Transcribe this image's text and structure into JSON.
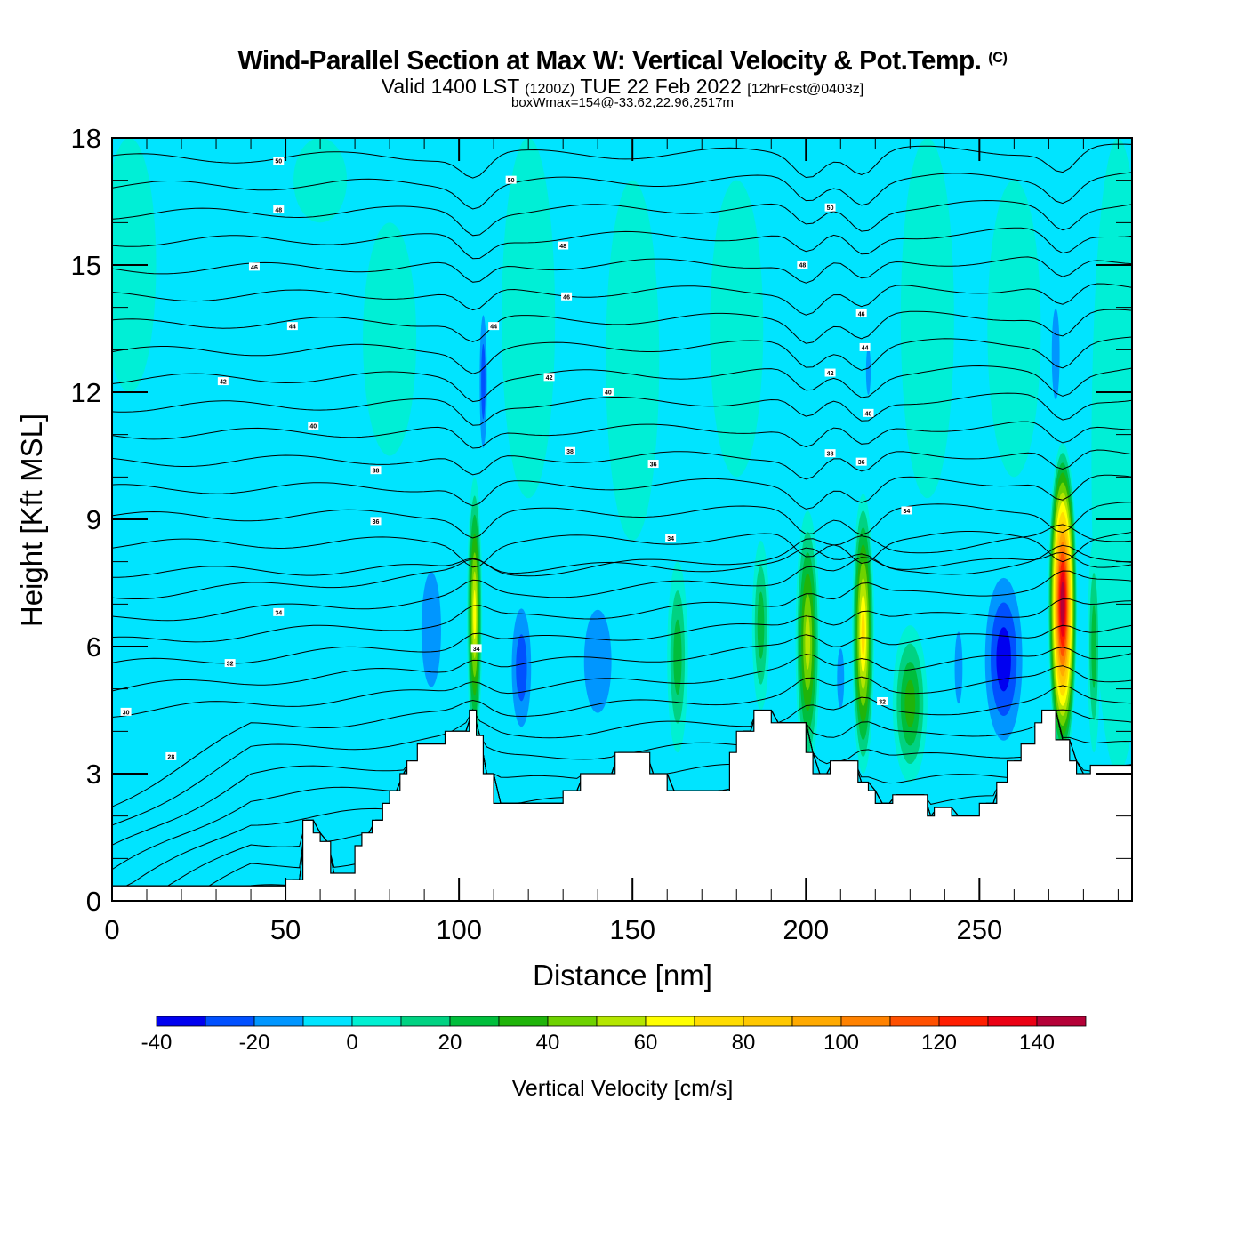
{
  "header": {
    "title": "Wind-Parallel Section at Max W: Vertical Velocity & Pot.Temp.",
    "copyright": "(C)",
    "valid_prefix": "Valid 1400 LST",
    "valid_utc": "(1200Z)",
    "valid_date": "TUE 22 Feb 2022",
    "forecast": "[12hrFcst@0403z]",
    "box_wmax": "boxWmax=154@-33.62,22.96,2517m"
  },
  "chart_data": {
    "type": "heatmap",
    "title": "Wind-Parallel Section at Max W: Vertical Velocity & Pot.Temp.",
    "xlabel": "Distance [nm]",
    "ylabel": "Height [Kft MSL]",
    "xlim": [
      0,
      294
    ],
    "ylim": [
      0,
      18
    ],
    "xticks": [
      0,
      50,
      100,
      150,
      200,
      250
    ],
    "yticks": [
      0,
      3,
      6,
      9,
      12,
      15,
      18
    ],
    "x_minor_step": 10,
    "y_minor_step": 1,
    "colorbar": {
      "title": "Vertical Velocity [cm/s]",
      "levels": [
        -40,
        -30,
        -20,
        -10,
        0,
        10,
        20,
        30,
        40,
        50,
        60,
        70,
        80,
        90,
        100,
        110,
        120,
        130,
        140,
        150
      ],
      "tick_labels": [
        -40,
        -20,
        0,
        20,
        40,
        60,
        80,
        100,
        120,
        140
      ],
      "colors": [
        "#0000f0",
        "#0050ff",
        "#0096ff",
        "#00e4ff",
        "#00f0d2",
        "#00d282",
        "#00be3c",
        "#20b40a",
        "#6ed200",
        "#b4e600",
        "#ffff00",
        "#ffdc00",
        "#ffc800",
        "#ffaa00",
        "#ff8200",
        "#ff5000",
        "#ff1e00",
        "#eb0014",
        "#b40037"
      ]
    },
    "background_value": 5,
    "updrafts": [
      {
        "x": 104.5,
        "zmin": 3.5,
        "zmax": 10.0,
        "peak": 65,
        "width": 2.2
      },
      {
        "x": 200.5,
        "zmin": 3.0,
        "zmax": 9.2,
        "peak": 55,
        "width": 3.5
      },
      {
        "x": 216.5,
        "zmin": 3.0,
        "zmax": 9.6,
        "peak": 75,
        "width": 3.2
      },
      {
        "x": 274,
        "zmin": 3.2,
        "zmax": 10.8,
        "peak": 154,
        "width": 4.2
      },
      {
        "x": 187,
        "zmin": 4.5,
        "zmax": 8.5,
        "peak": 25,
        "width": 2.5
      },
      {
        "x": 230,
        "zmin": 2.8,
        "zmax": 6.5,
        "peak": 30,
        "width": 5
      },
      {
        "x": 283,
        "zmin": 3.5,
        "zmax": 8.5,
        "peak": 22,
        "width": 1.8
      },
      {
        "x": 163,
        "zmin": 3.5,
        "zmax": 8.0,
        "peak": 20,
        "width": 3
      }
    ],
    "downdrafts": [
      {
        "x": 92,
        "zmin": 4.0,
        "zmax": 8.8,
        "peak": -20,
        "width": 5
      },
      {
        "x": 118,
        "zmin": 3.5,
        "zmax": 7.5,
        "peak": -30,
        "width": 4
      },
      {
        "x": 140,
        "zmin": 3.5,
        "zmax": 7.8,
        "peak": -20,
        "width": 7
      },
      {
        "x": 107,
        "zmin": 10.0,
        "zmax": 14.5,
        "peak": -30,
        "width": 1.5
      },
      {
        "x": 210,
        "zmin": 4.0,
        "zmax": 6.5,
        "peak": -20,
        "width": 1.8
      },
      {
        "x": 257,
        "zmin": 3.2,
        "zmax": 8.2,
        "peak": -40,
        "width": 7
      },
      {
        "x": 272,
        "zmin": 11.0,
        "zmax": 14.8,
        "peak": -25,
        "width": 2
      },
      {
        "x": 218,
        "zmin": 11.5,
        "zmax": 13.5,
        "peak": -25,
        "width": 1.2
      },
      {
        "x": 244,
        "zmin": 4.0,
        "zmax": 7.0,
        "peak": -20,
        "width": 2
      }
    ],
    "terrain_kft": {
      "x": [
        0,
        30,
        45,
        50,
        55,
        58,
        60,
        63,
        65,
        67,
        70,
        72,
        75,
        78,
        80,
        83,
        85,
        88,
        92,
        96,
        100,
        103,
        105,
        107,
        110,
        112,
        125,
        130,
        135,
        145,
        150,
        155,
        160,
        165,
        170,
        178,
        180,
        185,
        188,
        190,
        195,
        200,
        202,
        205,
        207,
        210,
        215,
        218,
        220,
        223,
        225,
        235,
        237,
        240,
        242,
        248,
        250,
        255,
        258,
        262,
        266,
        268,
        270,
        272,
        276,
        278,
        280,
        282,
        285,
        294
      ],
      "z": [
        0.35,
        0.35,
        0.35,
        0.5,
        1.9,
        1.6,
        1.4,
        0.65,
        0.65,
        0.65,
        1.3,
        1.6,
        1.9,
        2.3,
        2.6,
        3.0,
        3.3,
        3.7,
        3.7,
        4.0,
        4.0,
        4.5,
        3.9,
        3.0,
        2.3,
        2.3,
        2.3,
        2.6,
        3.0,
        3.5,
        3.5,
        3.0,
        2.6,
        2.6,
        2.6,
        3.5,
        4.0,
        4.5,
        4.5,
        4.2,
        4.2,
        3.5,
        3.0,
        3.0,
        3.3,
        3.3,
        2.8,
        2.6,
        2.3,
        2.3,
        2.5,
        2.0,
        2.2,
        2.2,
        2.0,
        2.0,
        2.3,
        2.8,
        3.3,
        3.7,
        4.2,
        4.5,
        4.5,
        3.8,
        3.3,
        3.0,
        3.0,
        3.2,
        3.2,
        3.2
      ]
    },
    "theta_contours": {
      "unit": "C",
      "levels": [
        20,
        21,
        22,
        23,
        24,
        25,
        26,
        27,
        28,
        29,
        30,
        31,
        32,
        33,
        34,
        35,
        36,
        37,
        38,
        39,
        40,
        41,
        42,
        43,
        44,
        45,
        46,
        47,
        48,
        49,
        50,
        51
      ],
      "labels": [
        {
          "text": "50",
          "x": 48,
          "z": 17.45
        },
        {
          "text": "48",
          "x": 48,
          "z": 16.3
        },
        {
          "text": "46",
          "x": 41,
          "z": 14.95
        },
        {
          "text": "44",
          "x": 52,
          "z": 13.55
        },
        {
          "text": "42",
          "x": 32,
          "z": 12.25
        },
        {
          "text": "40",
          "x": 58,
          "z": 11.2
        },
        {
          "text": "38",
          "x": 76,
          "z": 10.15
        },
        {
          "text": "36",
          "x": 76,
          "z": 8.95
        },
        {
          "text": "34",
          "x": 48,
          "z": 6.8
        },
        {
          "text": "32",
          "x": 34,
          "z": 5.6
        },
        {
          "text": "30",
          "x": 4,
          "z": 4.45
        },
        {
          "text": "28",
          "x": 17,
          "z": 3.4
        },
        {
          "text": "50",
          "x": 115,
          "z": 17.0
        },
        {
          "text": "48",
          "x": 130,
          "z": 15.45
        },
        {
          "text": "46",
          "x": 131,
          "z": 14.25
        },
        {
          "text": "44",
          "x": 110,
          "z": 13.55
        },
        {
          "text": "42",
          "x": 126,
          "z": 12.35
        },
        {
          "text": "40",
          "x": 143,
          "z": 12.0
        },
        {
          "text": "38",
          "x": 132,
          "z": 10.6
        },
        {
          "text": "36",
          "x": 156,
          "z": 10.3
        },
        {
          "text": "34",
          "x": 161,
          "z": 8.55
        },
        {
          "text": "34",
          "x": 105,
          "z": 5.95
        },
        {
          "text": "50",
          "x": 207,
          "z": 16.35
        },
        {
          "text": "48",
          "x": 199,
          "z": 15.0
        },
        {
          "text": "46",
          "x": 216,
          "z": 13.85
        },
        {
          "text": "44",
          "x": 217,
          "z": 13.05
        },
        {
          "text": "42",
          "x": 207,
          "z": 12.45
        },
        {
          "text": "40",
          "x": 218,
          "z": 11.5
        },
        {
          "text": "38",
          "x": 207,
          "z": 10.55
        },
        {
          "text": "36",
          "x": 216,
          "z": 10.35
        },
        {
          "text": "34",
          "x": 229,
          "z": 9.2
        },
        {
          "text": "32",
          "x": 222,
          "z": 4.7
        }
      ]
    }
  }
}
